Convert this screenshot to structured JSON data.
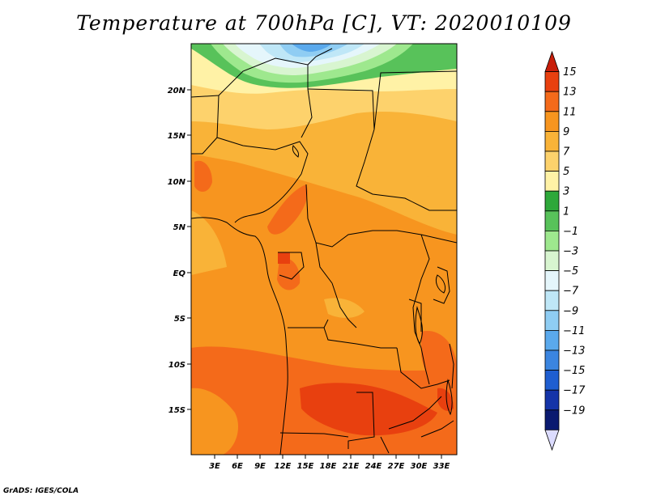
{
  "title": "Temperature at 700hPa [C], VT: 2020010109",
  "credit": "GrADS: IGES/COLA",
  "map": {
    "lat_labels": [
      "20N",
      "15N",
      "10N",
      "5N",
      "EQ",
      "5S",
      "10S",
      "15S"
    ],
    "lon_labels": [
      "3E",
      "6E",
      "9E",
      "12E",
      "15E",
      "18E",
      "21E",
      "24E",
      "27E",
      "30E",
      "33E"
    ]
  },
  "colorbar": {
    "labels": [
      "15",
      "13",
      "11",
      "9",
      "7",
      "5",
      "3",
      "1",
      "−1",
      "−3",
      "−5",
      "−7",
      "−9",
      "−11",
      "−13",
      "−15",
      "−17",
      "−19"
    ],
    "colors": [
      "#c81e0a",
      "#e8400f",
      "#f46a1a",
      "#f7951f",
      "#f9b338",
      "#fdd26c",
      "#fff2a6",
      "#2ea83a",
      "#58c25a",
      "#9ee88e",
      "#d8f5d0",
      "#e5f6fb",
      "#bfe7f7",
      "#8fcdf3",
      "#5aa9ec",
      "#3b85e0",
      "#1f5ed0",
      "#1434a8",
      "#0a1a70",
      "#dcdcff"
    ]
  }
}
